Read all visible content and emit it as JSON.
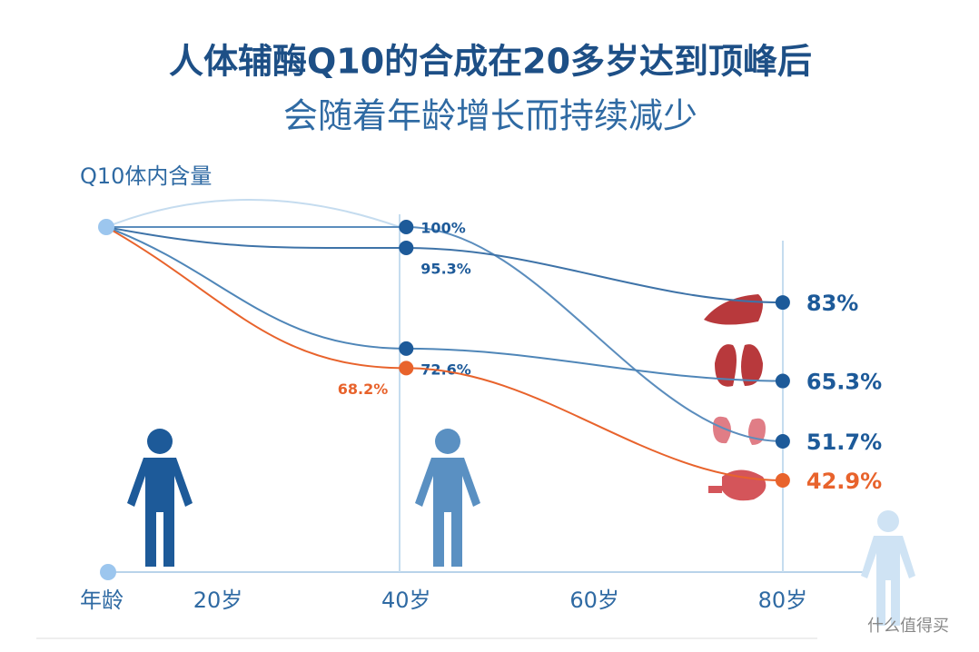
{
  "chart_data": {
    "type": "line",
    "title": "人体辅酶Q10的合成在20多岁达到顶峰后",
    "subtitle": "会随着年龄增长而持续减少",
    "y_label": "Q10体内含量",
    "x_label": "年龄",
    "categories": [
      "20岁",
      "40岁",
      "60岁",
      "80岁"
    ],
    "series": [
      {
        "color": "#5b8dbd",
        "values": [
          null,
          100,
          null,
          51.7
        ],
        "value_labels": [
          null,
          "100%",
          null,
          "51.7%"
        ]
      },
      {
        "color": "#3e73a8",
        "values": [
          null,
          95.3,
          null,
          83
        ],
        "value_labels": [
          null,
          "95.3%",
          null,
          "83%"
        ]
      },
      {
        "color": "#4f86b8",
        "values": [
          null,
          72.6,
          null,
          65.3
        ],
        "value_labels": [
          null,
          "72.6%",
          null,
          "65.3%"
        ]
      },
      {
        "color": "#e8632c",
        "values": [
          null,
          68.2,
          null,
          42.9
        ],
        "value_labels": [
          null,
          "68.2%",
          null,
          "42.9%"
        ]
      }
    ],
    "watermark": "什么值得买"
  }
}
